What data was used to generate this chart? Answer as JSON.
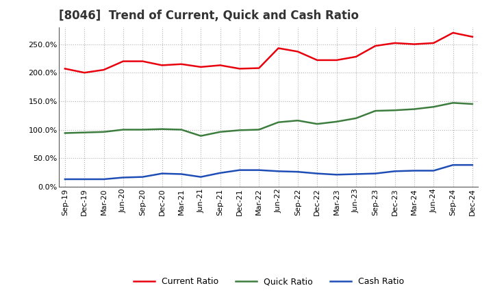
{
  "title": "[8046]  Trend of Current, Quick and Cash Ratio",
  "labels": [
    "Sep-19",
    "Dec-19",
    "Mar-20",
    "Jun-20",
    "Sep-20",
    "Dec-20",
    "Mar-21",
    "Jun-21",
    "Sep-21",
    "Dec-21",
    "Mar-22",
    "Jun-22",
    "Sep-22",
    "Dec-22",
    "Mar-23",
    "Jun-23",
    "Sep-23",
    "Dec-23",
    "Mar-24",
    "Jun-24",
    "Sep-24",
    "Dec-24"
  ],
  "current_ratio": [
    207,
    200,
    205,
    220,
    220,
    213,
    215,
    210,
    213,
    207,
    208,
    243,
    237,
    222,
    222,
    228,
    247,
    252,
    250,
    252,
    270,
    263
  ],
  "quick_ratio": [
    94,
    95,
    96,
    100,
    100,
    101,
    100,
    89,
    96,
    99,
    100,
    113,
    116,
    110,
    114,
    120,
    133,
    134,
    136,
    140,
    147,
    145
  ],
  "cash_ratio": [
    13,
    13,
    13,
    16,
    17,
    23,
    22,
    17,
    24,
    29,
    29,
    27,
    26,
    23,
    21,
    22,
    23,
    27,
    28,
    28,
    38,
    38
  ],
  "current_color": "#e8000d",
  "quick_color": "#3c7d3e",
  "cash_color": "#1f4db6",
  "ylim": [
    0,
    280
  ],
  "yticks": [
    0,
    50,
    100,
    150,
    200,
    250
  ],
  "background_color": "#ffffff",
  "grid_color": "#b0b0b0",
  "legend_labels": [
    "Current Ratio",
    "Quick Ratio",
    "Cash Ratio"
  ],
  "title_fontsize": 12,
  "tick_fontsize": 8,
  "legend_fontsize": 9
}
